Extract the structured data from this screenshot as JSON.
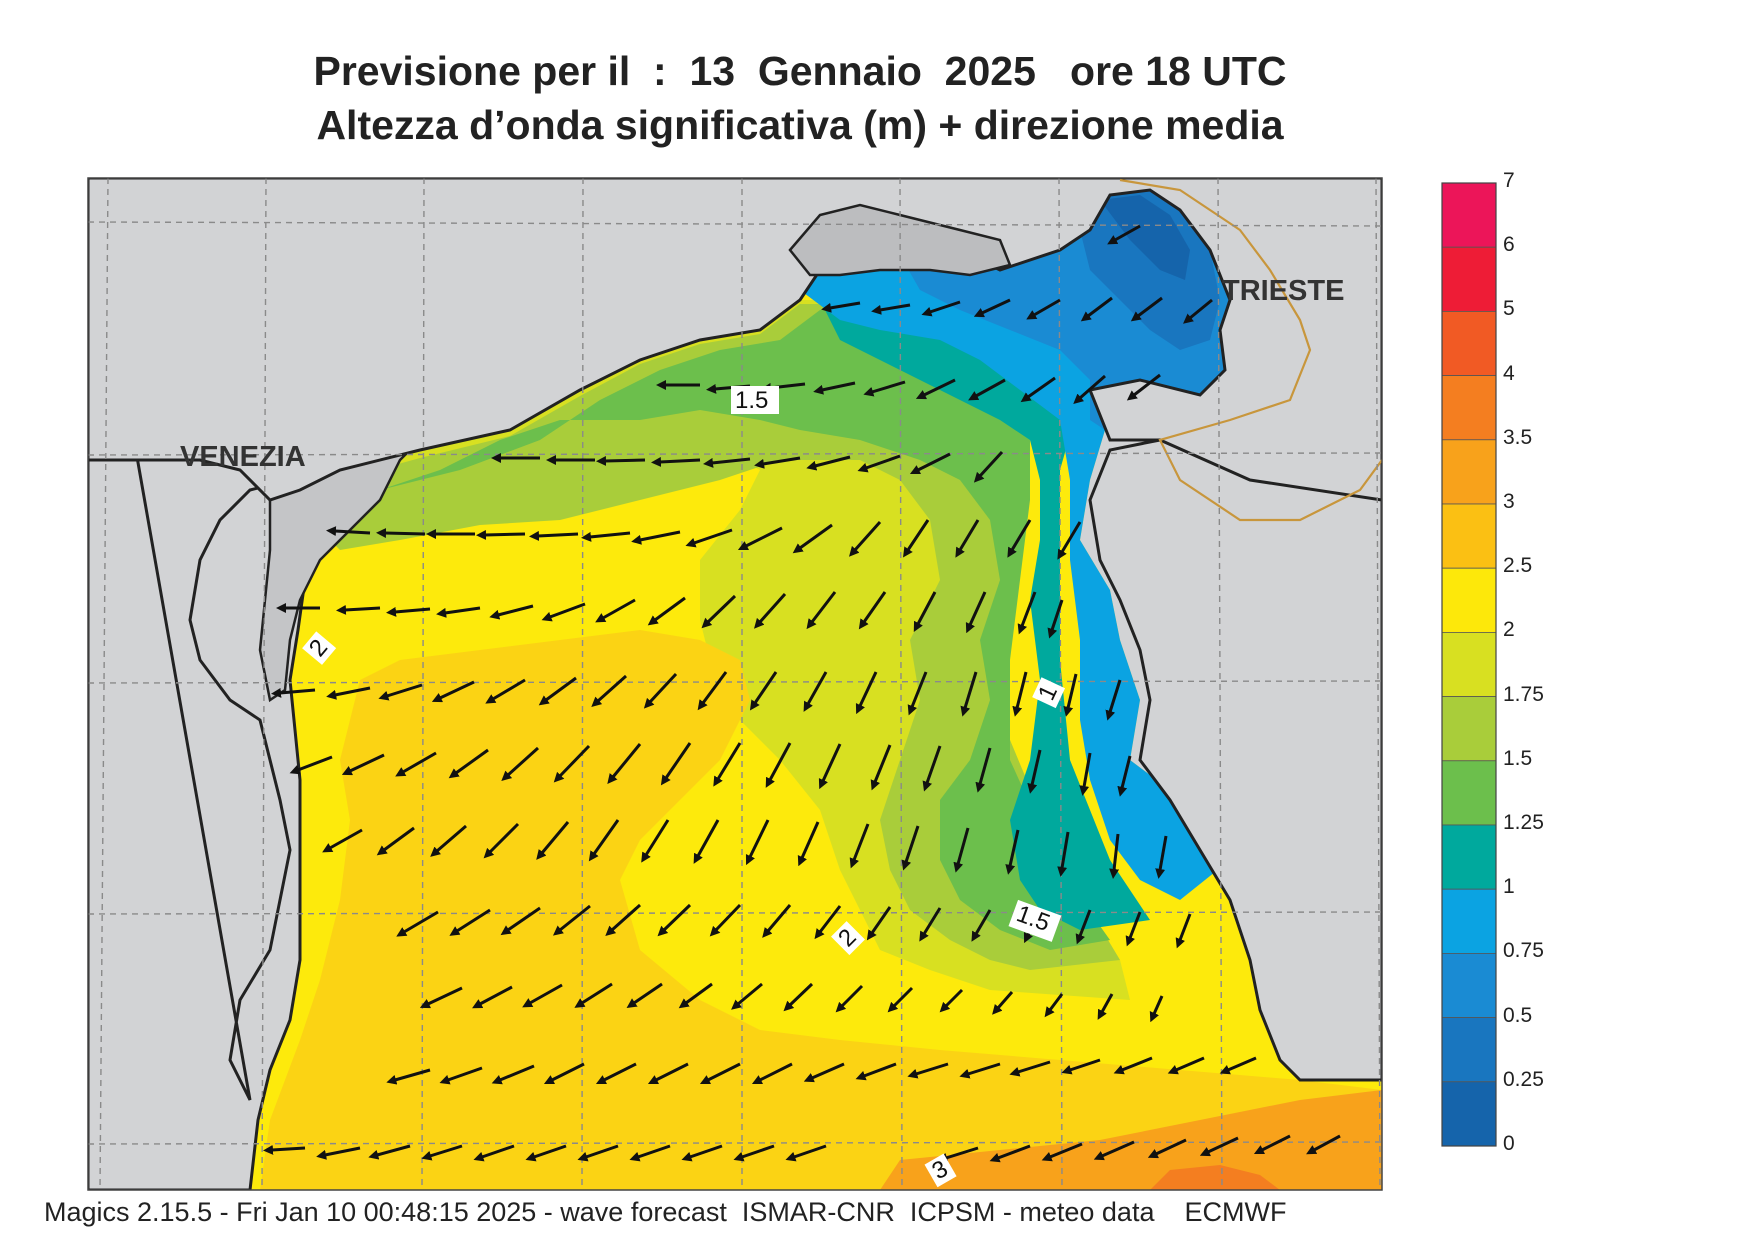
{
  "header": {
    "title_line1": "Previsione per il  :  13  Gennaio  2025   ore 18 UTC",
    "title_line2": "Altezza d’onda significativa (m) + direzione media"
  },
  "map": {
    "places": [
      {
        "name": "VENEZIA"
      },
      {
        "name": "TRIESTE"
      }
    ],
    "contour_labels": [
      {
        "text": "1.5"
      },
      {
        "text": "2"
      },
      {
        "text": "1"
      },
      {
        "text": "2"
      },
      {
        "text": "1.5"
      },
      {
        "text": "3"
      }
    ]
  },
  "legend": {
    "levels": [
      {
        "label": "7",
        "color": "#ec1559"
      },
      {
        "label": "6",
        "color": "#ee1c36"
      },
      {
        "label": "5",
        "color": "#f15a24"
      },
      {
        "label": "4",
        "color": "#f47e20"
      },
      {
        "label": "3.5",
        "color": "#f8a21b"
      },
      {
        "label": "3",
        "color": "#fbc013"
      },
      {
        "label": "2.5",
        "color": "#fde80a"
      },
      {
        "label": "2",
        "color": "#d8e021"
      },
      {
        "label": "1.75",
        "color": "#a9cd3a"
      },
      {
        "label": "1.5",
        "color": "#6cbf4c"
      },
      {
        "label": "1.25",
        "color": "#00a99d"
      },
      {
        "label": "1",
        "color": "#0ba3e2"
      },
      {
        "label": "0.75",
        "color": "#1a8bd3"
      },
      {
        "label": "0.5",
        "color": "#1976bf"
      },
      {
        "label": "0.25",
        "color": "#1564ab"
      },
      {
        "label": "0",
        "color": ""
      }
    ]
  },
  "footer": {
    "text": "Magics 2.15.5 - Fri Jan 10 00:48:15 2025 - wave forecast  ISMAR-CNR  ICPSM - meteo data    ECMWF"
  }
}
